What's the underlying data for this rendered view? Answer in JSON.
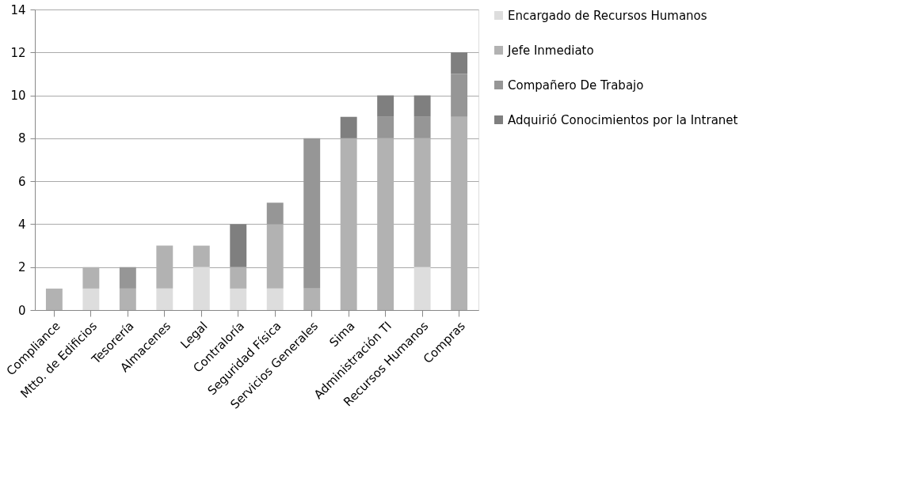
{
  "chart_data": {
    "type": "bar",
    "stacked": true,
    "categories": [
      "Compliance",
      "Mtto. de Edificios",
      "Tesorería",
      "Almacenes",
      "Legal",
      "Contraloría",
      "Seguridad Física",
      "Servicios Generales",
      "Sima",
      "Administración TI",
      "Recursos Humanos",
      "Compras"
    ],
    "series": [
      {
        "name": "Encargado de Recursos Humanos",
        "color": "#dddddd",
        "values": [
          0,
          1,
          0,
          1,
          2,
          1,
          1,
          0,
          0,
          0,
          2,
          0
        ]
      },
      {
        "name": "Jefe Inmediato",
        "color": "#b2b2b2",
        "values": [
          1,
          1,
          1,
          2,
          1,
          1,
          3,
          1,
          8,
          8,
          6,
          9
        ]
      },
      {
        "name": "Compañero De Trabajo",
        "color": "#969696",
        "values": [
          0,
          0,
          1,
          0,
          0,
          0,
          1,
          7,
          0,
          1,
          1,
          2
        ]
      },
      {
        "name": "Adquirió Conocimientos  por la Intranet",
        "color": "#7f7f7f",
        "values": [
          0,
          0,
          0,
          0,
          0,
          2,
          0,
          0,
          1,
          1,
          1,
          1
        ]
      }
    ],
    "ylim": [
      0,
      14
    ],
    "yticks": [
      0,
      2,
      4,
      6,
      8,
      10,
      12,
      14
    ],
    "grid": "y",
    "legend": "right"
  }
}
